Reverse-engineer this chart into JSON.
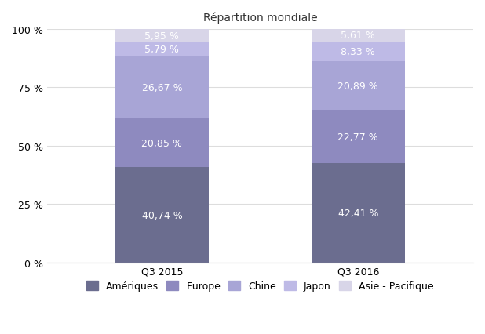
{
  "title": "Répartition mondiale",
  "categories": [
    "Q3 2015",
    "Q3 2016"
  ],
  "segments": [
    {
      "label": "Amériques",
      "values": [
        40.74,
        42.41
      ],
      "color": "#6b6d8f"
    },
    {
      "label": "Europe",
      "values": [
        20.85,
        22.77
      ],
      "color": "#8e8abf"
    },
    {
      "label": "Chine",
      "values": [
        26.67,
        20.89
      ],
      "color": "#a8a5d6"
    },
    {
      "label": "Japon",
      "values": [
        5.79,
        8.33
      ],
      "color": "#bebae6"
    },
    {
      "label": "Asie - Pacifique",
      "values": [
        5.95,
        5.61
      ],
      "color": "#d8d5e8"
    }
  ],
  "ylabel_ticks": [
    0,
    25,
    50,
    75,
    100
  ],
  "ytick_labels": [
    "0 %",
    "25 %",
    "50 %",
    "75 %",
    "100 %"
  ],
  "bar_width": 0.22,
  "x_positions": [
    0.27,
    0.73
  ],
  "xlim": [
    0.0,
    1.0
  ],
  "background_color": "#ffffff",
  "label_color": "#ffffff",
  "title_fontsize": 10,
  "tick_fontsize": 9,
  "legend_fontsize": 9,
  "annotation_fontsize": 9
}
